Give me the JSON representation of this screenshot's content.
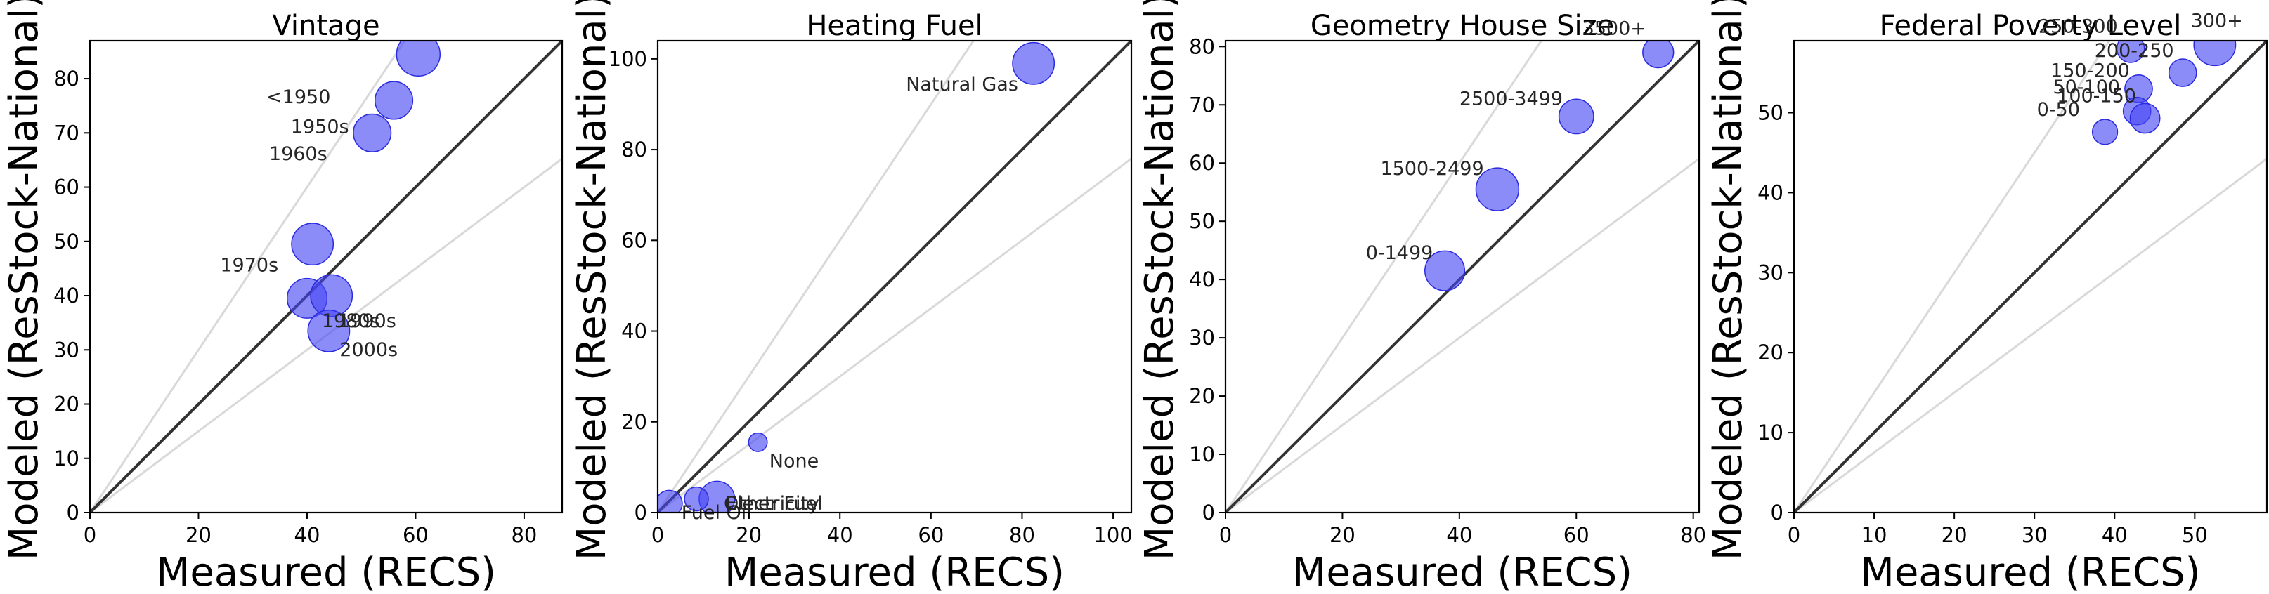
{
  "chart_data": [
    {
      "type": "scatter",
      "title": "Vintage",
      "xlabel": "Measured (RECS)",
      "ylabel": "Modeled (ResStock-National)",
      "xlim": [
        0,
        87
      ],
      "ylim": [
        0,
        87
      ],
      "xticks": [
        0,
        20,
        40,
        60,
        80
      ],
      "yticks": [
        0,
        10,
        20,
        30,
        40,
        50,
        60,
        70,
        80
      ],
      "reference_lines": {
        "identity": true,
        "guide_slopes": [
          1.5,
          0.75
        ]
      },
      "points": [
        {
          "label": "<1950",
          "x": 60.5,
          "y": 84.5,
          "size": 60,
          "label_dx": -28,
          "label_dy": -9
        },
        {
          "label": "1950s",
          "x": 56,
          "y": 76,
          "size": 45,
          "label_dx": -19,
          "label_dy": -6
        },
        {
          "label": "1960s",
          "x": 52,
          "y": 70,
          "size": 45,
          "label_dx": -19,
          "label_dy": -5
        },
        {
          "label": "1970s",
          "x": 41,
          "y": 49.5,
          "size": 55,
          "label_dx": -17,
          "label_dy": -5
        },
        {
          "label": "1980s",
          "x": 40,
          "y": 39.5,
          "size": 50,
          "label_dx": 2.7,
          "label_dy": -5.3
        },
        {
          "label": "1990s",
          "x": 44.5,
          "y": 40,
          "size": 55,
          "label_dx": 1.2,
          "label_dy": -5.8
        },
        {
          "label": "2000s",
          "x": 44,
          "y": 33.5,
          "size": 55,
          "label_dx": 2,
          "label_dy": -4.6
        }
      ]
    },
    {
      "type": "scatter",
      "title": "Heating Fuel",
      "xlabel": "Measured (RECS)",
      "ylabel": "Modeled (ResStock-National)",
      "xlim": [
        0,
        104
      ],
      "ylim": [
        0,
        104
      ],
      "xticks": [
        0,
        20,
        40,
        60,
        80,
        100
      ],
      "yticks": [
        0,
        20,
        40,
        60,
        80,
        100
      ],
      "reference_lines": {
        "identity": true,
        "guide_slopes": [
          1.5,
          0.75
        ]
      },
      "points": [
        {
          "label": "Natural Gas",
          "x": 82.5,
          "y": 99,
          "size": 55,
          "label_dx": -28,
          "label_dy": -6
        },
        {
          "label": "None",
          "x": 22,
          "y": 15.5,
          "size": 11,
          "label_dx": 2.5,
          "label_dy": -5.5
        },
        {
          "label": "Electricity",
          "x": 13,
          "y": 3,
          "size": 40,
          "label_dx": 1.8,
          "label_dy": -2.4
        },
        {
          "label": "Other Fuel",
          "x": 8.5,
          "y": 3,
          "size": 18,
          "label_dx": 6,
          "label_dy": -2.4
        },
        {
          "label": "Fuel Oil",
          "x": 2.5,
          "y": 2,
          "size": 22,
          "label_dx": 2.7,
          "label_dy": -3.4
        }
      ]
    },
    {
      "type": "scatter",
      "title": "Geometry House Size",
      "xlabel": "Measured (RECS)",
      "ylabel": "Modeled (ResStock-National)",
      "xlim": [
        0,
        81
      ],
      "ylim": [
        0,
        81
      ],
      "xticks": [
        0,
        20,
        40,
        60,
        80
      ],
      "yticks": [
        0,
        10,
        20,
        30,
        40,
        50,
        60,
        70,
        80
      ],
      "reference_lines": {
        "identity": true,
        "guide_slopes": [
          1.5,
          0.75
        ]
      },
      "points": [
        {
          "label": "3500+",
          "x": 74,
          "y": 79,
          "size": 30,
          "label_dx": -13,
          "label_dy": 3
        },
        {
          "label": "2500-3499",
          "x": 60,
          "y": 68,
          "size": 38,
          "label_dx": -20,
          "label_dy": 2
        },
        {
          "label": "1500-2499",
          "x": 46.5,
          "y": 55.5,
          "size": 58,
          "label_dx": -20,
          "label_dy": 2.5
        },
        {
          "label": "0-1499",
          "x": 37.5,
          "y": 41.5,
          "size": 50,
          "label_dx": -13.5,
          "label_dy": 2
        }
      ]
    },
    {
      "type": "scatter",
      "title": "Federal Poverty Level",
      "xlabel": "Measured (RECS)",
      "ylabel": "Modeled (ResStock-National)",
      "xlim": [
        0,
        59
      ],
      "ylim": [
        0,
        59
      ],
      "xticks": [
        0,
        10,
        20,
        30,
        40,
        50
      ],
      "yticks": [
        0,
        10,
        20,
        30,
        40,
        50
      ],
      "reference_lines": {
        "identity": true,
        "guide_slopes": [
          1.5,
          0.75
        ]
      },
      "points": [
        {
          "label": "300+",
          "x": 52.5,
          "y": 58.5,
          "size": 55,
          "label_dx": -3,
          "label_dy": 2.2
        },
        {
          "label": "250-300",
          "x": 42,
          "y": 58,
          "size": 24,
          "label_dx": -11.5,
          "label_dy": 2
        },
        {
          "label": "200-250",
          "x": 48.5,
          "y": 55,
          "size": 24,
          "label_dx": -11,
          "label_dy": 2
        },
        {
          "label": "150-200",
          "x": 43,
          "y": 53,
          "size": 24,
          "label_dx": -11,
          "label_dy": 1.5
        },
        {
          "label": "50-100",
          "x": 42.8,
          "y": 50.2,
          "size": 24,
          "label_dx": -10.5,
          "label_dy": 2.2
        },
        {
          "label": "100-150",
          "x": 43.8,
          "y": 49.3,
          "size": 28,
          "label_dx": -11,
          "label_dy": 2
        },
        {
          "label": "0-50",
          "x": 38.8,
          "y": 47.6,
          "size": 20,
          "label_dx": -8.5,
          "label_dy": 2
        }
      ]
    }
  ]
}
